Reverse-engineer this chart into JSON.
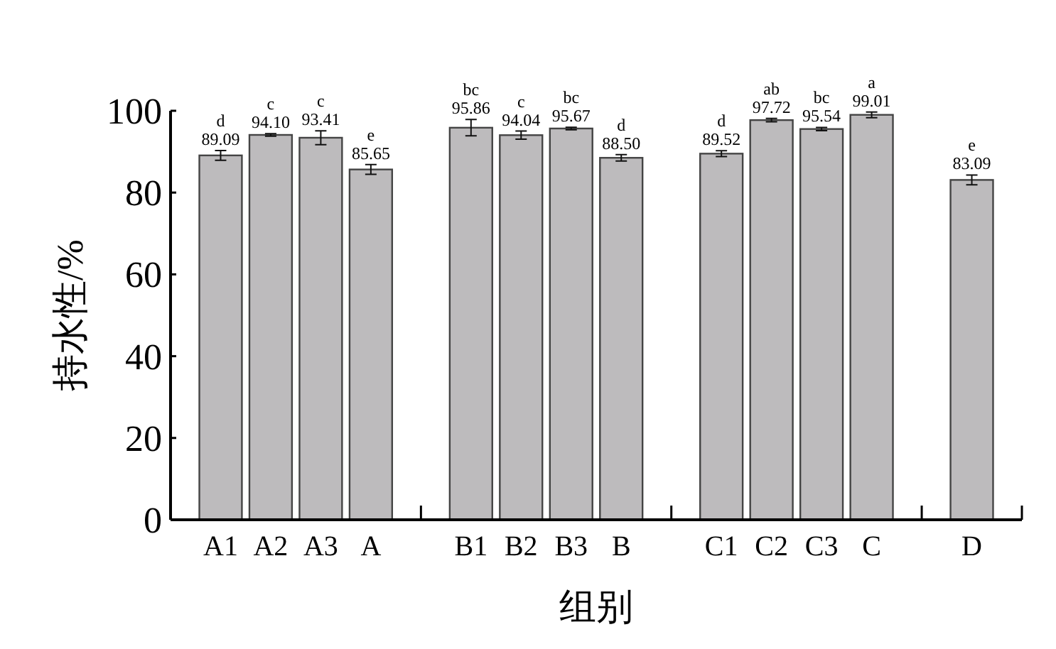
{
  "chart_data": {
    "type": "bar",
    "xlabel": "组别",
    "ylabel": "持水性/%",
    "color": "#bdbbbd",
    "categories": [
      "A1",
      "A2",
      "A3",
      "A",
      null,
      "B1",
      "B2",
      "B3",
      "B",
      null,
      "C1",
      "C2",
      "C3",
      "C",
      null,
      "D"
    ],
    "values": [
      89.09,
      94.1,
      93.41,
      85.65,
      null,
      95.86,
      94.04,
      95.67,
      88.5,
      null,
      89.52,
      97.72,
      95.54,
      99.01,
      null,
      83.09
    ],
    "errors": [
      1.2,
      0.3,
      1.7,
      1.2,
      null,
      2.0,
      1.0,
      0.3,
      0.8,
      null,
      0.7,
      0.4,
      0.4,
      0.7,
      null,
      1.2
    ],
    "value_labels": [
      "89.09",
      "94.10",
      "93.41",
      "85.65",
      null,
      "95.86",
      "94.04",
      "95.67",
      "88.50",
      null,
      "89.52",
      "97.72",
      "95.54",
      "99.01",
      null,
      "83.09"
    ],
    "ylim": [
      0,
      100
    ],
    "yticks": [
      0,
      20,
      40,
      60,
      80,
      100
    ],
    "annotations": [
      {
        "text": "d",
        "x": "A1",
        "y": 89.09
      },
      {
        "text": "c",
        "x": "A2",
        "y": 94.1
      },
      {
        "text": "c",
        "x": "A3",
        "y": 93.41
      },
      {
        "text": "e",
        "x": "A",
        "y": 85.65
      },
      {
        "text": "bc",
        "x": "B1",
        "y": 95.86
      },
      {
        "text": "c",
        "x": "B2",
        "y": 94.04
      },
      {
        "text": "bc",
        "x": "B3",
        "y": 95.67
      },
      {
        "text": "d",
        "x": "B",
        "y": 88.5
      },
      {
        "text": "d",
        "x": "C1",
        "y": 89.52
      },
      {
        "text": "ab",
        "x": "C2",
        "y": 97.72
      },
      {
        "text": "bc",
        "x": "C3",
        "y": 95.54
      },
      {
        "text": "a",
        "x": "C",
        "y": 99.01
      },
      {
        "text": "e",
        "x": "D",
        "y": 83.09
      }
    ]
  }
}
